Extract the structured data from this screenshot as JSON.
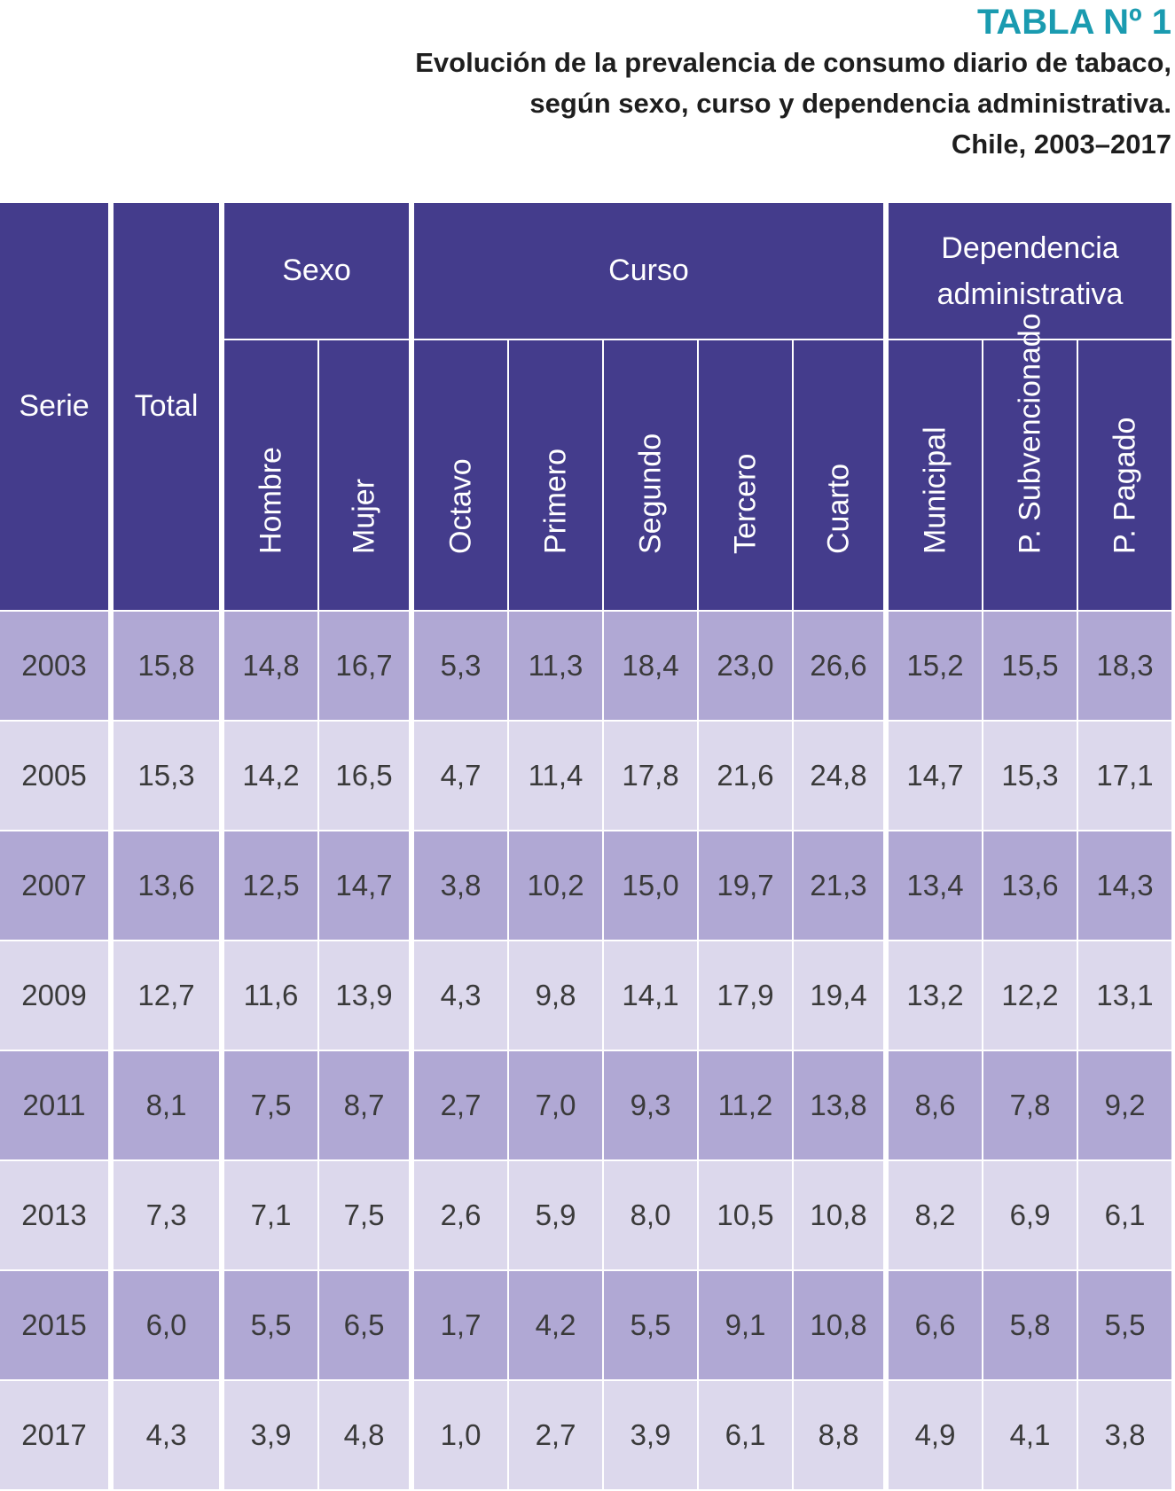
{
  "title": "TABLA Nº 1",
  "subtitle_lines": [
    "Evolución de la prevalencia de consumo diario de tabaco,",
    "según sexo, curso y dependencia administrativa.",
    "Chile, 2003–2017"
  ],
  "headers": {
    "serie": "Serie",
    "total": "Total",
    "sexo": "Sexo",
    "curso": "Curso",
    "dependencia": "Dependencia administrativa",
    "sub": [
      "Hombre",
      "Mujer",
      "Octavo",
      "Primero",
      "Segundo",
      "Tercero",
      "Cuarto",
      "Municipal",
      "P. Subvencionado",
      "P. Pagado"
    ]
  },
  "colors": {
    "title": "#1a9bb0",
    "header_bg": "#443c8c",
    "row_dark": "#b0a8d4",
    "row_light": "#dcd8ec"
  },
  "chart_data": {
    "type": "table",
    "title": "TABLA Nº 1",
    "columns": [
      "Serie",
      "Total",
      "Hombre",
      "Mujer",
      "Octavo",
      "Primero",
      "Segundo",
      "Tercero",
      "Cuarto",
      "Municipal",
      "P. Subvencionado",
      "P. Pagado"
    ],
    "rows": [
      [
        "2003",
        "15,8",
        "14,8",
        "16,7",
        "5,3",
        "11,3",
        "18,4",
        "23,0",
        "26,6",
        "15,2",
        "15,5",
        "18,3"
      ],
      [
        "2005",
        "15,3",
        "14,2",
        "16,5",
        "4,7",
        "11,4",
        "17,8",
        "21,6",
        "24,8",
        "14,7",
        "15,3",
        "17,1"
      ],
      [
        "2007",
        "13,6",
        "12,5",
        "14,7",
        "3,8",
        "10,2",
        "15,0",
        "19,7",
        "21,3",
        "13,4",
        "13,6",
        "14,3"
      ],
      [
        "2009",
        "12,7",
        "11,6",
        "13,9",
        "4,3",
        "9,8",
        "14,1",
        "17,9",
        "19,4",
        "13,2",
        "12,2",
        "13,1"
      ],
      [
        "2011",
        "8,1",
        "7,5",
        "8,7",
        "2,7",
        "7,0",
        "9,3",
        "11,2",
        "13,8",
        "8,6",
        "7,8",
        "9,2"
      ],
      [
        "2013",
        "7,3",
        "7,1",
        "7,5",
        "2,6",
        "5,9",
        "8,0",
        "10,5",
        "10,8",
        "8,2",
        "6,9",
        "6,1"
      ],
      [
        "2015",
        "6,0",
        "5,5",
        "6,5",
        "1,7",
        "4,2",
        "5,5",
        "9,1",
        "10,8",
        "6,6",
        "5,8",
        "5,5"
      ],
      [
        "2017",
        "4,3",
        "3,9",
        "4,8",
        "1,0",
        "2,7",
        "3,9",
        "6,1",
        "8,8",
        "4,9",
        "4,1",
        "3,8"
      ]
    ]
  }
}
